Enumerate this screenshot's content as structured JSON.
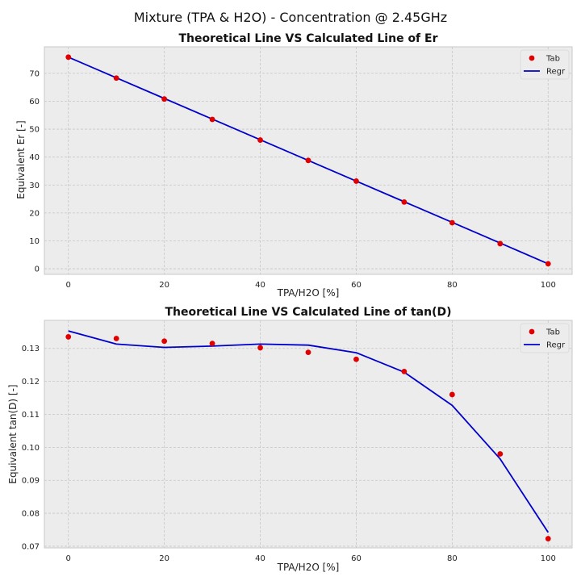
{
  "figure_title": "Mixture (TPA & H2O) - Concentration @ 2.45GHz",
  "colors": {
    "background": "#ffffff",
    "axes_face": "#ececec",
    "grid": "#c6c6c6",
    "spine": "#c8c8c8",
    "scatter": "#e00000",
    "line": "#0000cc"
  },
  "chart_data": [
    {
      "type": "scatter+line",
      "title": "Theoretical Line VS Calculated Line of Er",
      "xlabel": "TPA/H2O [%]",
      "ylabel": "Equivalent Er [-]",
      "xlim": [
        -5,
        105
      ],
      "ylim": [
        -2,
        79.5
      ],
      "xticks": [
        0,
        20,
        40,
        60,
        80,
        100
      ],
      "yticks": [
        0,
        10,
        20,
        30,
        40,
        50,
        60,
        70
      ],
      "ytick_decimals": 0,
      "grid": true,
      "legend_position": "top-right",
      "series": [
        {
          "name": "Tab",
          "kind": "scatter",
          "x": [
            0,
            10,
            20,
            30,
            40,
            50,
            60,
            70,
            80,
            90,
            100
          ],
          "y": [
            75.8,
            68.3,
            60.8,
            53.5,
            46.1,
            38.8,
            31.4,
            23.9,
            16.5,
            9.0,
            1.8
          ]
        },
        {
          "name": "Regr",
          "kind": "line",
          "x": [
            0,
            10,
            20,
            30,
            40,
            50,
            60,
            70,
            80,
            90,
            100
          ],
          "y": [
            75.8,
            68.4,
            61.0,
            53.6,
            46.2,
            38.8,
            31.4,
            24.0,
            16.6,
            9.2,
            1.8
          ]
        }
      ]
    },
    {
      "type": "scatter+line",
      "title": "Theoretical Line VS Calculated Line of tan(D)",
      "xlabel": "TPA/H2O [%]",
      "ylabel": "Equivalent tan(D) [-]",
      "xlim": [
        -5,
        105
      ],
      "ylim": [
        0.0695,
        0.1385
      ],
      "xticks": [
        0,
        20,
        40,
        60,
        80,
        100
      ],
      "yticks": [
        0.07,
        0.08,
        0.09,
        0.1,
        0.11,
        0.12,
        0.13
      ],
      "ytick_decimals": 2,
      "grid": true,
      "legend_position": "top-right",
      "series": [
        {
          "name": "Tab",
          "kind": "scatter",
          "x": [
            0,
            10,
            20,
            30,
            40,
            50,
            60,
            70,
            80,
            90,
            100
          ],
          "y": [
            0.1335,
            0.133,
            0.1322,
            0.1315,
            0.1302,
            0.1288,
            0.1267,
            0.123,
            0.116,
            0.098,
            0.0723
          ]
        },
        {
          "name": "Regr",
          "kind": "line",
          "x": [
            0,
            10,
            20,
            30,
            40,
            50,
            60,
            70,
            80,
            90,
            100
          ],
          "y": [
            0.1353,
            0.1313,
            0.1303,
            0.1307,
            0.1313,
            0.131,
            0.1287,
            0.1228,
            0.1127,
            0.0965,
            0.0742
          ]
        }
      ]
    }
  ]
}
